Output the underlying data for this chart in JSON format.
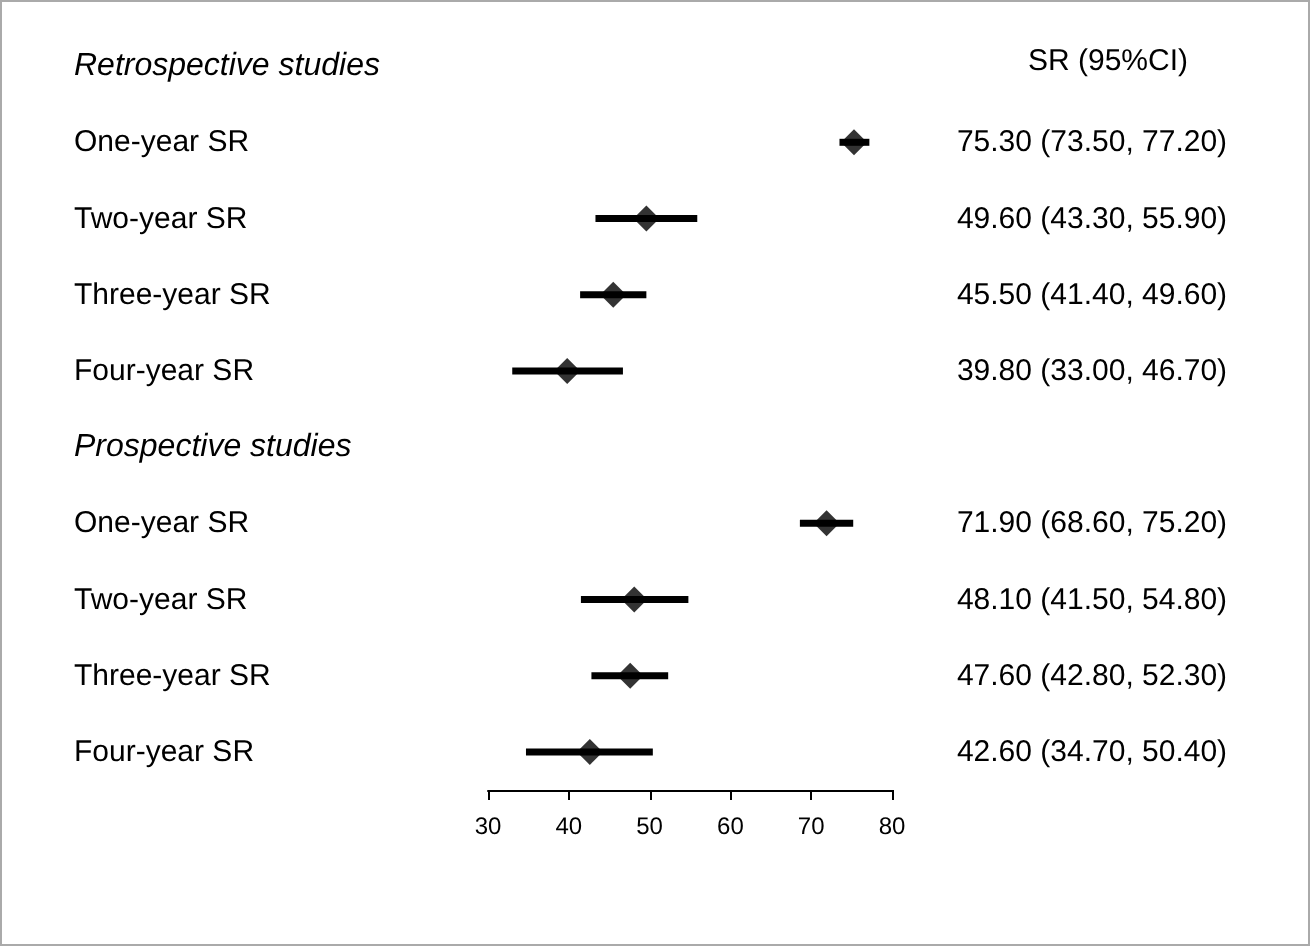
{
  "chart_data": {
    "type": "scatter",
    "orientation": "horizontal",
    "categories": [
      "Retrospective studies",
      "One-year SR",
      "Two-year SR",
      "Three-year SR",
      "Four-year SR",
      "Prospective studies",
      "One-year SR",
      "Two-year SR",
      "Three-year SR",
      "Four-year SR"
    ],
    "values": [
      null,
      75.3,
      49.6,
      45.5,
      39.8,
      null,
      71.9,
      48.1,
      47.6,
      42.6
    ],
    "errors": [
      null,
      [
        73.5,
        77.2
      ],
      [
        43.3,
        55.9
      ],
      [
        41.4,
        49.6
      ],
      [
        33.0,
        46.7
      ],
      null,
      [
        68.6,
        75.2
      ],
      [
        41.5,
        54.8
      ],
      [
        42.8,
        52.3
      ],
      [
        34.7,
        50.4
      ]
    ],
    "value_labels": [
      null,
      "75.30 (73.50, 77.20)",
      "49.60 (43.30, 55.90)",
      "45.50 (41.40, 49.60)",
      "39.80 (33.00, 46.70)",
      null,
      "71.90 (68.60, 75.20)",
      "48.10 (41.50, 54.80)",
      "47.60 (42.80, 52.30)",
      "42.60 (34.70, 50.40)"
    ],
    "annotations": [
      "SR (95%CI)"
    ],
    "color": "#000000",
    "marker": "diamond",
    "xlim": [
      30,
      80
    ],
    "xticks": [
      30,
      40,
      50,
      60,
      70,
      80
    ]
  }
}
